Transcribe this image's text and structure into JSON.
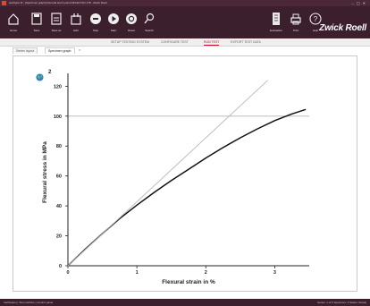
{
  "window": {
    "title": "testXpert III - [Specimen graph] Flexural test 3-point DIN EN ISO 178 - Zwick Roell"
  },
  "toolbar": {
    "buttons": [
      {
        "label": "Home",
        "icon": "home-icon"
      },
      {
        "label": "Save",
        "icon": "save-icon"
      },
      {
        "label": "Save as",
        "icon": "save-as-icon"
      },
      {
        "label": "Edit",
        "icon": "edit-icon"
      },
      {
        "label": "Stop",
        "icon": "stop-icon"
      },
      {
        "label": "Start",
        "icon": "play-icon"
      },
      {
        "label": "Reset",
        "icon": "reset-icon"
      },
      {
        "label": "Search",
        "icon": "search-icon"
      }
    ],
    "right_buttons": [
      {
        "label": "Evaluation",
        "icon": "document-icon"
      },
      {
        "label": "Print",
        "icon": "printer-icon"
      },
      {
        "label": "Help",
        "icon": "help-icon"
      }
    ],
    "brand": "Zwick Roell"
  },
  "tabs": [
    {
      "label": "SETUP TESTING SYSTEM",
      "active": false
    },
    {
      "label": "CONFIGURE TEST",
      "active": false
    },
    {
      "label": "RUN TEST",
      "active": true
    },
    {
      "label": "EXPORT TEST DATA",
      "active": false
    }
  ],
  "subtabs": [
    {
      "label": "Series layout",
      "active": false
    },
    {
      "label": "Specimen graph",
      "active": true
    }
  ],
  "subtab_close": "×",
  "chart_header_number": "2",
  "chart_data": {
    "type": "line",
    "xlabel": "Flexural strain in %",
    "ylabel": "Flexural stress in MPa",
    "xlim": [
      0,
      3.5
    ],
    "ylim": [
      0,
      125
    ],
    "x_ticks": [
      0,
      1,
      2,
      3
    ],
    "y_ticks": [
      0,
      20,
      40,
      60,
      80,
      100,
      120
    ],
    "reference_hline": 100,
    "series": [
      {
        "role": "curve",
        "color": "#111111",
        "x": [
          0,
          0.25,
          0.5,
          0.75,
          1.0,
          1.25,
          1.5,
          1.75,
          2.0,
          2.25,
          2.5,
          2.75,
          3.0,
          3.25,
          3.45
        ],
        "y": [
          0,
          11,
          21.5,
          31.5,
          40.5,
          49,
          57,
          64.5,
          72,
          79,
          85.5,
          91.5,
          97,
          101.5,
          104.5
        ]
      },
      {
        "role": "tangent",
        "color": "#b8b8b8",
        "x": [
          0,
          2.9
        ],
        "y": [
          0,
          124
        ]
      }
    ]
  },
  "statusbar": {
    "left": "Verification  |  Test machine  |  Control panel",
    "right": "Series: 1 of 5   Specimen: 3   Status: Ready"
  }
}
